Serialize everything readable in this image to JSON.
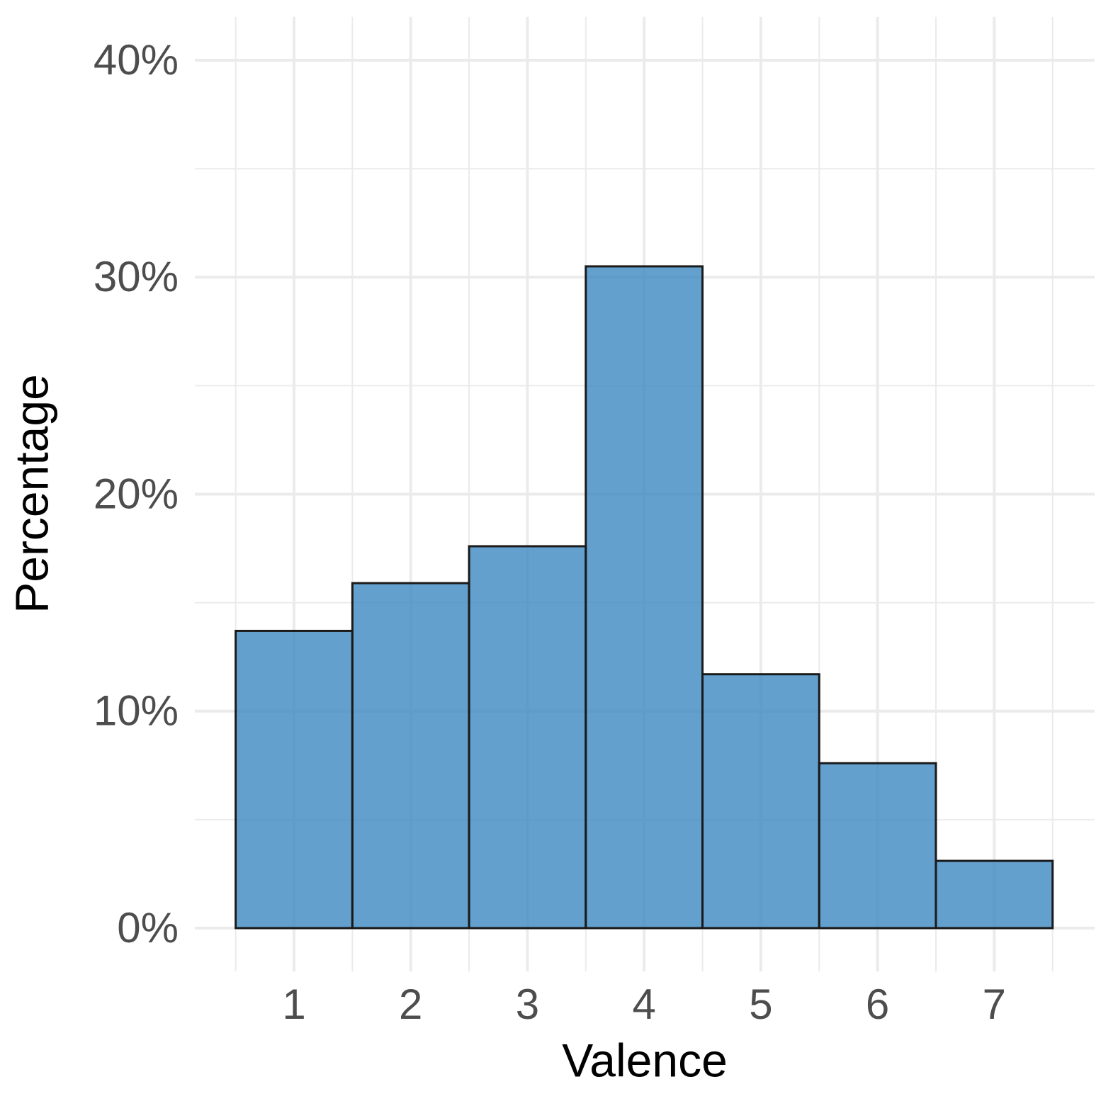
{
  "chart_data": {
    "type": "histogram",
    "x_label": "Valence",
    "y_label": "Percentage",
    "bins": [
      0.5,
      1.5,
      2.5,
      3.5,
      4.5,
      5.5,
      6.5,
      7.5
    ],
    "values": [
      13.7,
      15.9,
      17.6,
      30.5,
      11.7,
      7.6,
      3.1
    ],
    "color": "#3c88c2",
    "edge_color": "#1a1a1a",
    "xlim": [
      0.15,
      7.86
    ],
    "ylim": [
      -2,
      42
    ],
    "xticks": [
      1,
      2,
      3,
      4,
      5,
      6,
      7
    ],
    "yticks": [
      {
        "value": 0,
        "label": "0%"
      },
      {
        "value": 10,
        "label": "10%"
      },
      {
        "value": 20,
        "label": "20%"
      },
      {
        "value": 30,
        "label": "30%"
      },
      {
        "value": 40,
        "label": "40%"
      }
    ],
    "xminor": [
      0.5,
      1.5,
      2.5,
      3.5,
      4.5,
      5.5,
      6.5,
      7.5
    ],
    "yminor": [
      5,
      15,
      25,
      35
    ],
    "grid": true
  }
}
